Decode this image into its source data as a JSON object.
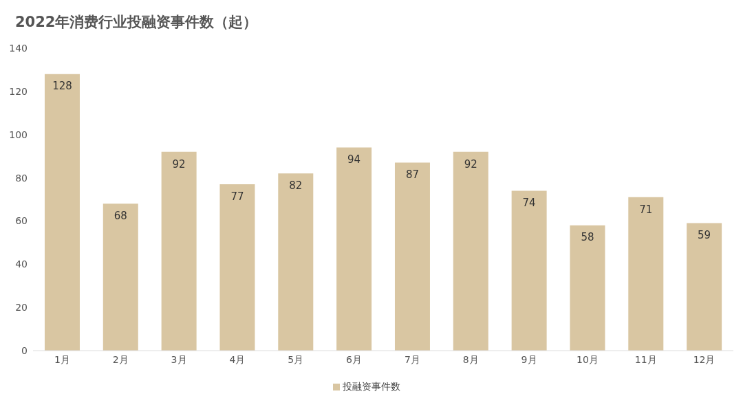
{
  "chart_data": {
    "type": "bar",
    "title": "2022年消费行业投融资事件数（起）",
    "categories": [
      "1月",
      "2月",
      "3月",
      "4月",
      "5月",
      "6月",
      "7月",
      "8月",
      "9月",
      "10月",
      "11月",
      "12月"
    ],
    "series": [
      {
        "name": "投融资事件数",
        "color": "#d9c6a2",
        "values": [
          128,
          68,
          92,
          77,
          82,
          94,
          87,
          92,
          74,
          58,
          71,
          59
        ]
      }
    ],
    "ylim": [
      0,
      140
    ],
    "yticks": [
      0,
      20,
      40,
      60,
      80,
      100,
      120,
      140
    ],
    "grid": false,
    "legend": "bottom",
    "data_labels": true
  }
}
